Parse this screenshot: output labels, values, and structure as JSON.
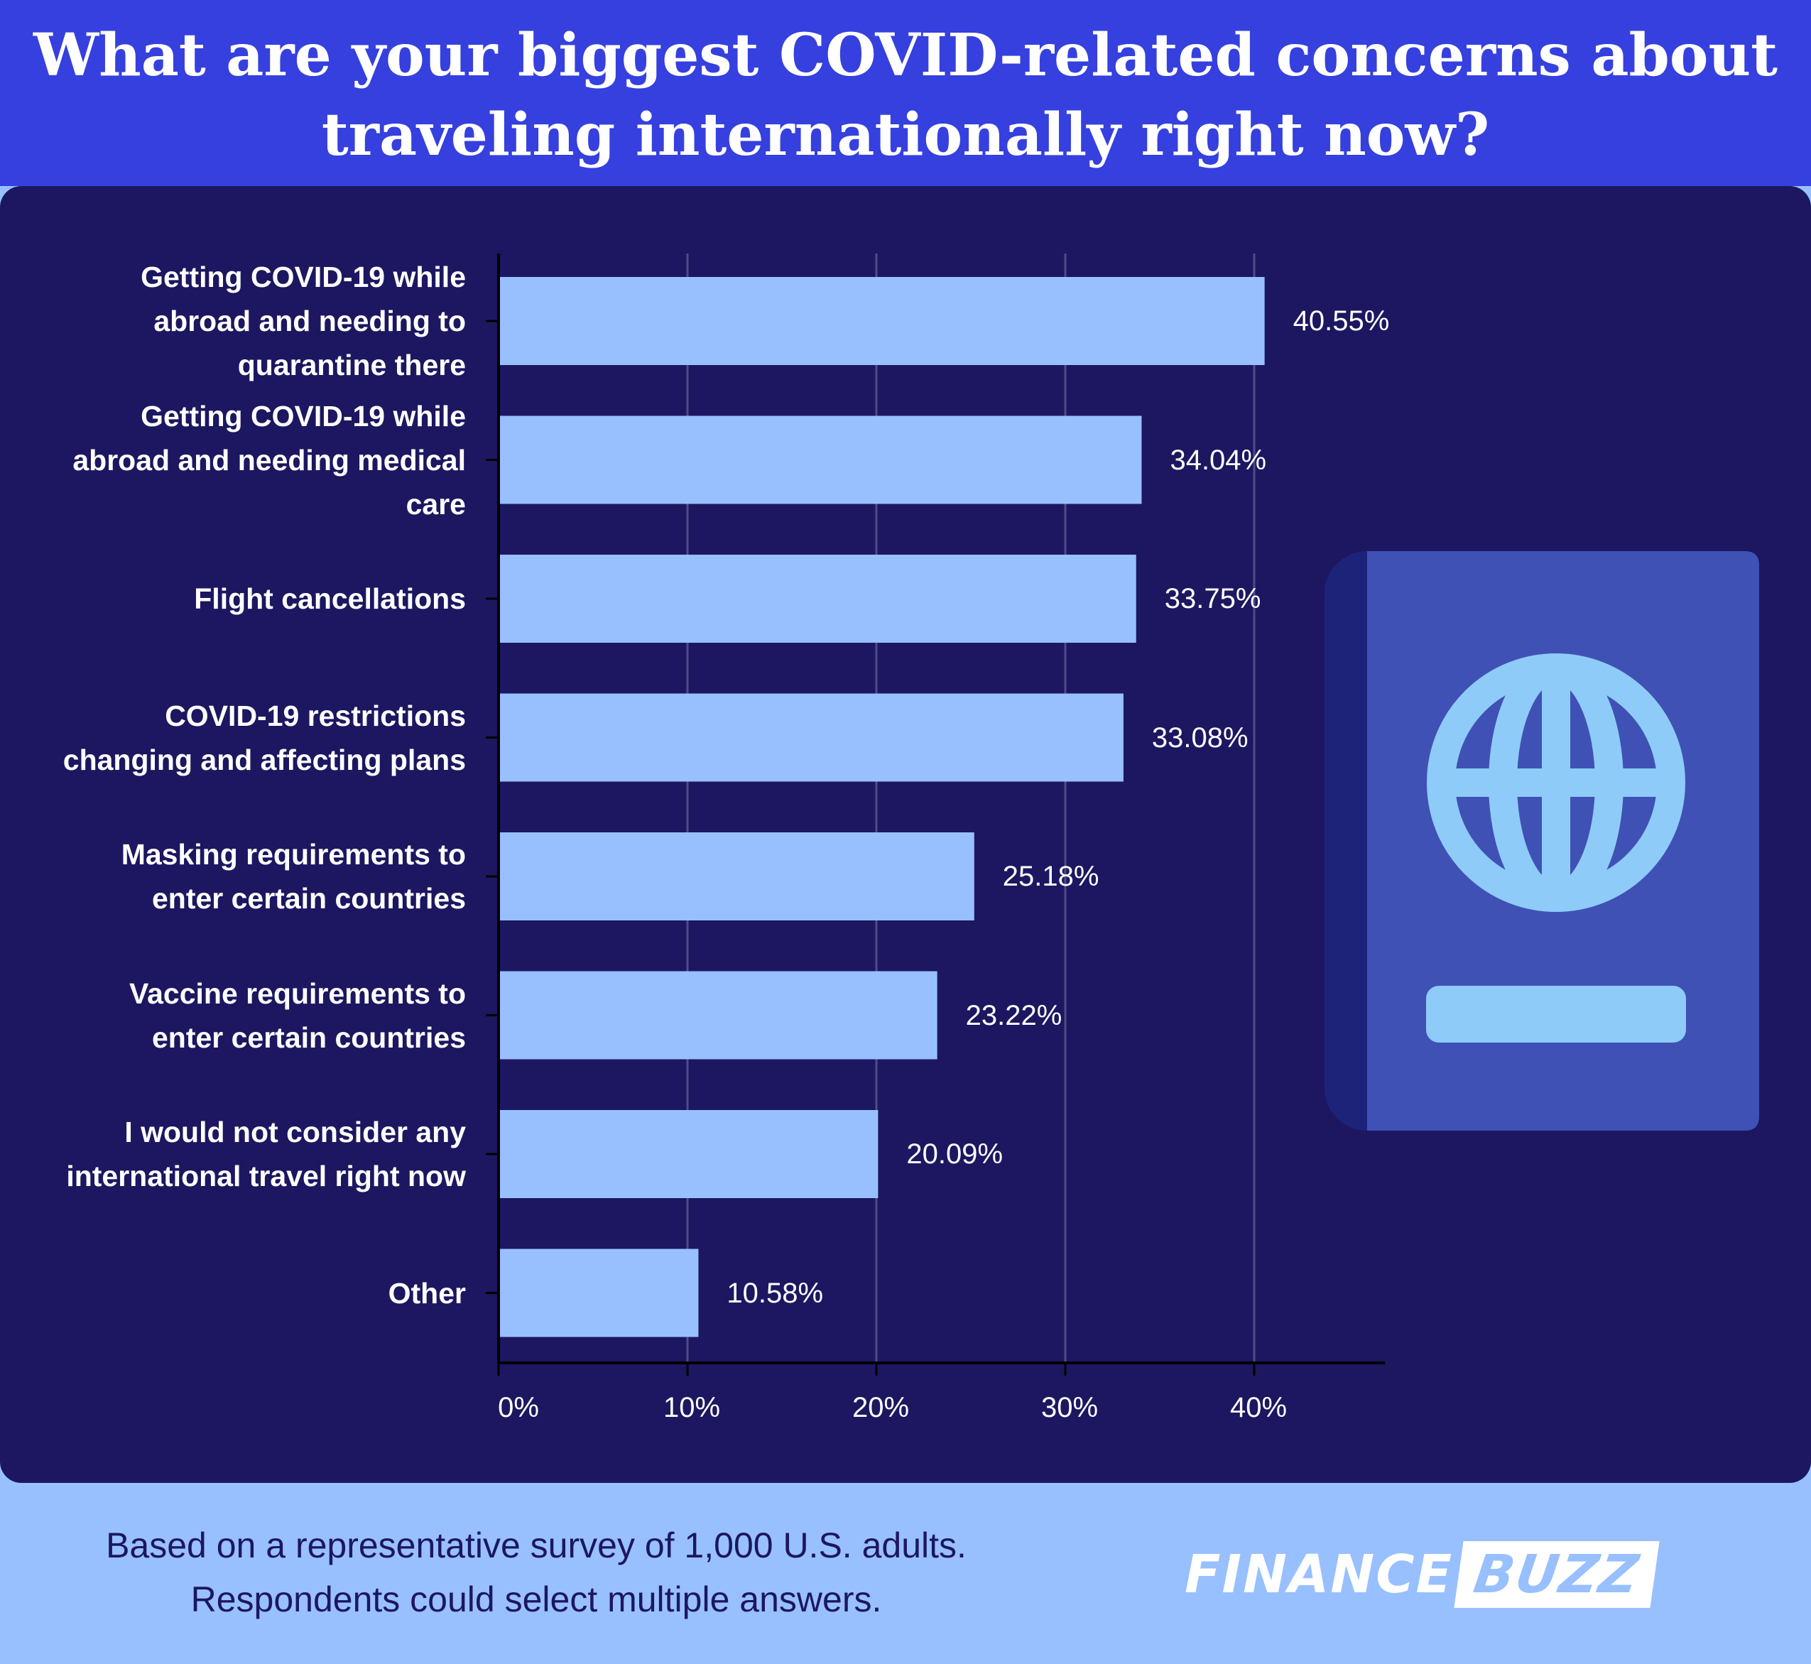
{
  "title_lines": [
    "What are your biggest COVID-related concerns about",
    "traveling internationally right now?"
  ],
  "footnote_lines": [
    "Based on a representative survey of 1,000 U.S. adults.",
    "Respondents could select multiple answers."
  ],
  "brand": {
    "part1": "FINANCE",
    "part2": "BUZZ"
  },
  "colors": {
    "header": "#3540df",
    "panel": "#1c1760",
    "bar": "#98c0ff",
    "passport_cover": "#4051b5",
    "passport_spine": "#1e237a",
    "passport_emblem": "#8ecbf9",
    "page_background": "#98c0ff"
  },
  "icons": [
    "passport-icon",
    "globe-icon"
  ],
  "chart_data": {
    "type": "bar",
    "orientation": "horizontal",
    "categories": [
      [
        "Getting COVID-19 while",
        "abroad and needing to",
        "quarantine there"
      ],
      [
        "Getting COVID-19 while",
        "abroad and needing medical",
        "care"
      ],
      [
        "Flight cancellations"
      ],
      [
        "COVID-19 restrictions",
        "changing and affecting plans"
      ],
      [
        "Masking requirements to",
        "enter certain countries"
      ],
      [
        "Vaccine requirements to",
        "enter certain countries"
      ],
      [
        "I would not consider any",
        "international travel right now"
      ],
      [
        "Other"
      ]
    ],
    "values": [
      40.55,
      34.04,
      33.75,
      33.08,
      25.18,
      23.22,
      20.09,
      10.58
    ],
    "value_labels": [
      "40.55%",
      "34.04%",
      "33.75%",
      "33.08%",
      "25.18%",
      "23.22%",
      "20.09%",
      "10.58%"
    ],
    "x_ticks": [
      0,
      10,
      20,
      30,
      40
    ],
    "x_tick_labels": [
      "0%",
      "10%",
      "20%",
      "30%",
      "40%"
    ],
    "xlim": [
      0,
      47
    ],
    "grid": true,
    "title": "What are your biggest COVID-related concerns about traveling internationally right now?"
  }
}
